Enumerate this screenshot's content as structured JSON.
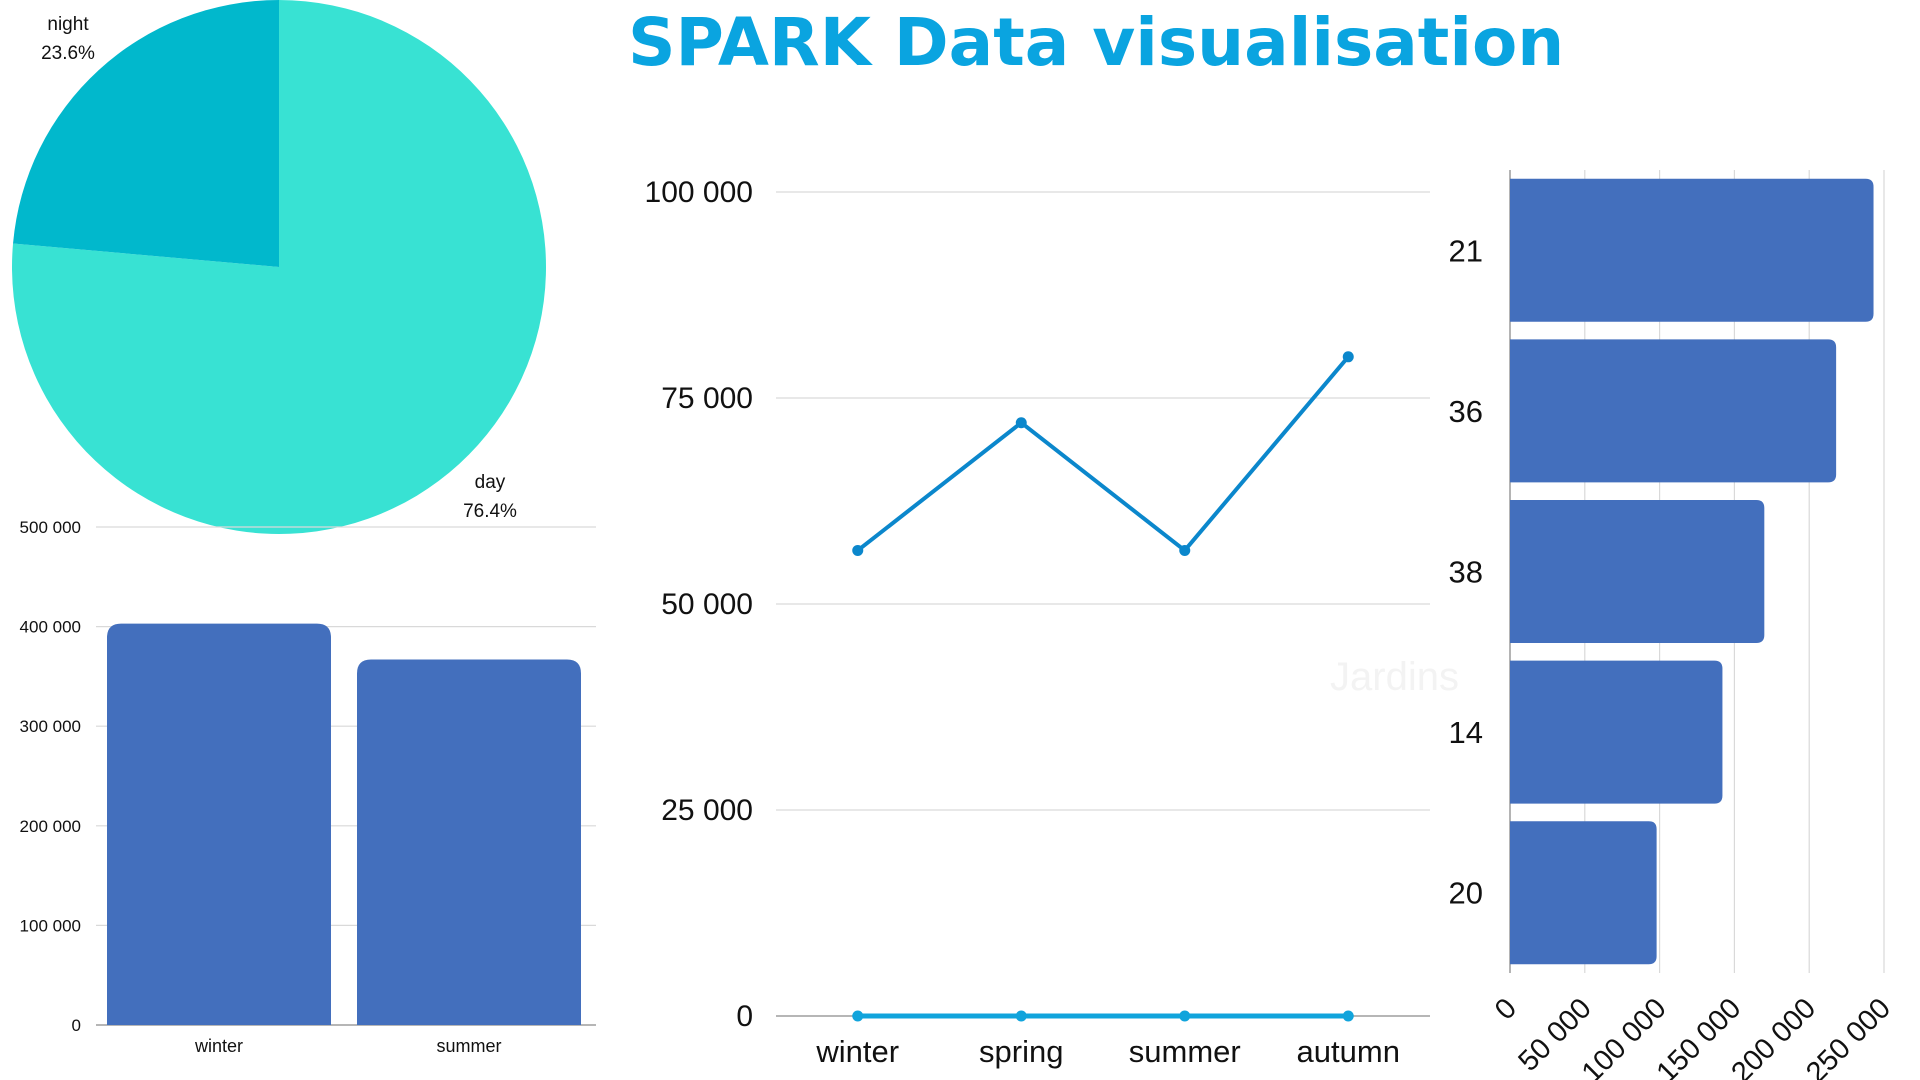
{
  "title": "SPARK Data visualisation",
  "colors": {
    "title": "#0aa4e0",
    "pie_day": "#38e2d3",
    "pie_night": "#01b8cc",
    "bar": "#436fbd",
    "line": "#0b87cc",
    "line_base": "#11a4dc",
    "watermark": "#f3f3f3"
  },
  "watermark": "Jardins",
  "chart_data": [
    {
      "type": "pie",
      "title": "",
      "slices": [
        {
          "label": "day",
          "value": 76.4,
          "display": "76.4%"
        },
        {
          "label": "night",
          "value": 23.6,
          "display": "23.6%"
        }
      ]
    },
    {
      "type": "bar",
      "title": "",
      "xlabel": "",
      "ylabel": "",
      "categories": [
        "winter",
        "summer"
      ],
      "values": [
        403000,
        367000
      ],
      "ylim": [
        0,
        500000
      ],
      "yticks": [
        0,
        100000,
        200000,
        300000,
        400000,
        500000
      ],
      "ytick_labels": [
        "0",
        "100 000",
        "200 000",
        "300 000",
        "400 000",
        "500 000"
      ],
      "grid": true
    },
    {
      "type": "line",
      "title": "",
      "xlabel": "",
      "ylabel": "",
      "categories": [
        "winter",
        "spring",
        "summer",
        "autumn"
      ],
      "series": [
        {
          "values": [
            56500,
            72000,
            56500,
            80000
          ]
        },
        {
          "values": [
            0,
            0,
            0,
            0
          ]
        }
      ],
      "ylim": [
        0,
        100000
      ],
      "yticks": [
        0,
        25000,
        50000,
        75000,
        100000
      ],
      "ytick_labels": [
        "0",
        "25 000",
        "50 000",
        "75 000",
        "100 000"
      ],
      "grid": true
    },
    {
      "type": "bar",
      "orientation": "horizontal",
      "title": "",
      "xlabel": "",
      "ylabel": "",
      "categories": [
        "21",
        "36",
        "38",
        "14",
        "20"
      ],
      "values": [
        243000,
        218000,
        170000,
        142000,
        98000
      ],
      "xlim": [
        0,
        250000
      ],
      "xticks": [
        0,
        50000,
        100000,
        150000,
        200000,
        250000
      ],
      "xtick_labels": [
        "0",
        "50 000",
        "100 000",
        "150 000",
        "200 000",
        "250 000"
      ],
      "grid": true
    }
  ]
}
